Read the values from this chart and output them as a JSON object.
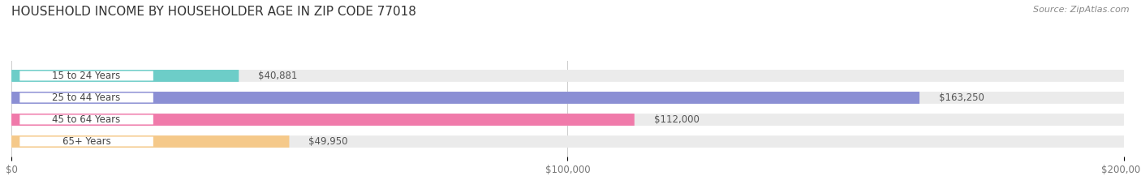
{
  "title": "HOUSEHOLD INCOME BY HOUSEHOLDER AGE IN ZIP CODE 77018",
  "source": "Source: ZipAtlas.com",
  "categories": [
    "15 to 24 Years",
    "25 to 44 Years",
    "45 to 64 Years",
    "65+ Years"
  ],
  "values": [
    40881,
    163250,
    112000,
    49950
  ],
  "bar_colors": [
    "#6dcdc8",
    "#8b8fd4",
    "#f07aaa",
    "#f5c98a"
  ],
  "track_color": "#ebebeb",
  "label_values": [
    "$40,881",
    "$163,250",
    "$112,000",
    "$49,950"
  ],
  "xlim": [
    0,
    200000
  ],
  "xticks": [
    0,
    100000,
    200000
  ],
  "xtick_labels": [
    "$0",
    "$100,000",
    "$200,000"
  ],
  "title_fontsize": 11,
  "bar_height": 0.55,
  "figsize": [
    14.06,
    2.33
  ],
  "dpi": 100
}
